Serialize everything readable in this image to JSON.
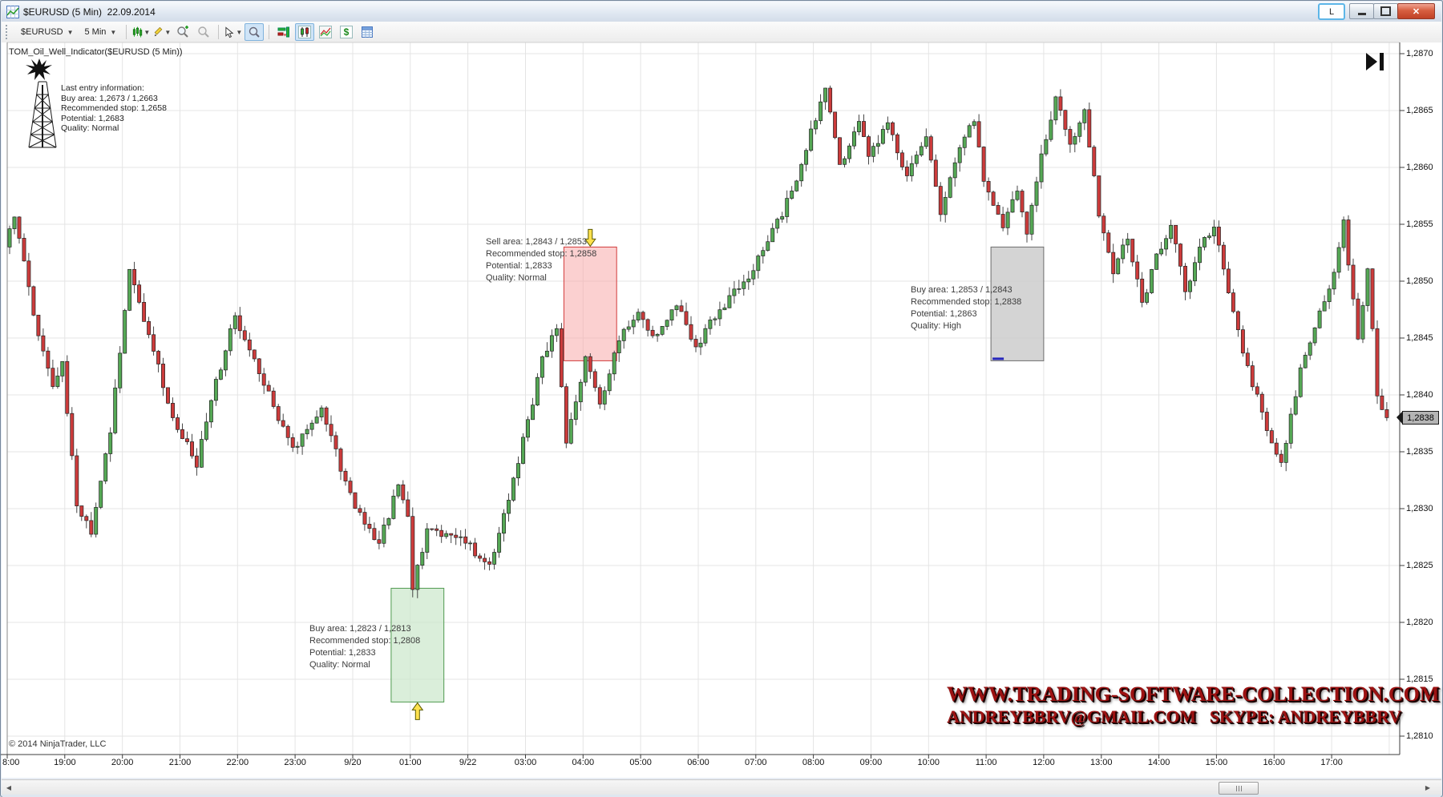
{
  "window": {
    "title": "$EURUSD (5 Min)  22.09.2014",
    "link_button": "L"
  },
  "toolbar": {
    "instrument": "$EURUSD",
    "interval": "5 Min"
  },
  "indicator": {
    "name": "TOM_Oil_Well_Indicator($EURUSD (5 Min))",
    "last_entry_lines": [
      "Last entry information:",
      "Buy area: 1,2673 / 1,2663",
      "Recommended stop: 1,2658",
      "Potential: 1,2683",
      "Quality: Normal"
    ]
  },
  "annotations": {
    "sell": {
      "lines": [
        "Sell area: 1,2843 / 1,2853",
        "Recommended stop: 1,2858",
        "Potential: 1,2833",
        "Quality: Normal"
      ]
    },
    "buy_normal": {
      "lines": [
        "Buy area: 1,2823 / 1,2813",
        "Recommended stop: 1,2808",
        "Potential: 1,2833",
        "Quality: Normal"
      ]
    },
    "buy_high": {
      "lines": [
        "Buy area: 1,2853 / 1,2843",
        "Recommended stop: 1,2838",
        "Potential: 1,2863",
        "Quality: High"
      ]
    }
  },
  "watermark": {
    "line1": "WWW.TRADING-SOFTWARE-COLLECTION.COM",
    "line2": "ANDREYBBRV@GMAIL.COM   SKYPE: ANDREYBBRV"
  },
  "copyright": "© 2014 NinjaTrader, LLC",
  "price_badge": "1,2838",
  "chart_data": {
    "type": "candlestick",
    "instrument": "$EURUSD",
    "interval_minutes": 5,
    "session_date": "22.09.2014",
    "last_price": 1.2838,
    "bars_per_hour": 12,
    "bar_count": 288,
    "x_tick_labels": [
      "8:00",
      "19:00",
      "20:00",
      "21:00",
      "22:00",
      "23:00",
      "9/20",
      "01:00",
      "9/22",
      "03:00",
      "04:00",
      "05:00",
      "06:00",
      "07:00",
      "08:00",
      "09:00",
      "10:00",
      "11:00",
      "12:00",
      "13:00",
      "14:00",
      "15:00",
      "16:00",
      "17:00"
    ],
    "y_axis": {
      "max": 1.287,
      "min": 1.281,
      "step": 0.0005,
      "labels": [
        "1,2870",
        "1,2865",
        "1,2860",
        "1,2855",
        "1,2850",
        "1,2845",
        "1,2840",
        "1,2835",
        "1,2830",
        "1,2825",
        "1,2820",
        "1,2815",
        "1,2810"
      ]
    },
    "price_path_anchors": [
      [
        0,
        1.2853
      ],
      [
        2,
        1.2856
      ],
      [
        6,
        1.2847
      ],
      [
        10,
        1.2841
      ],
      [
        12,
        1.2843
      ],
      [
        15,
        1.283
      ],
      [
        18,
        1.2828
      ],
      [
        22,
        1.2837
      ],
      [
        26,
        1.2851
      ],
      [
        30,
        1.2845
      ],
      [
        36,
        1.2837
      ],
      [
        40,
        1.2834
      ],
      [
        44,
        1.2841
      ],
      [
        48,
        1.2847
      ],
      [
        54,
        1.2841
      ],
      [
        60,
        1.2835
      ],
      [
        66,
        1.2839
      ],
      [
        72,
        1.2831
      ],
      [
        78,
        1.2827
      ],
      [
        82,
        1.2832
      ],
      [
        84,
        1.2829
      ],
      [
        85,
        1.2823
      ],
      [
        88,
        1.2828
      ],
      [
        96,
        1.2827
      ],
      [
        101,
        1.2825
      ],
      [
        105,
        1.2831
      ],
      [
        108,
        1.2836
      ],
      [
        112,
        1.2843
      ],
      [
        115,
        1.2846
      ],
      [
        117,
        1.2836
      ],
      [
        121,
        1.2843
      ],
      [
        124,
        1.2839
      ],
      [
        128,
        1.2845
      ],
      [
        132,
        1.2847
      ],
      [
        136,
        1.2845
      ],
      [
        140,
        1.2848
      ],
      [
        144,
        1.2844
      ],
      [
        148,
        1.2847
      ],
      [
        152,
        1.2849
      ],
      [
        156,
        1.2851
      ],
      [
        162,
        1.2856
      ],
      [
        166,
        1.286
      ],
      [
        168,
        1.2863
      ],
      [
        171,
        1.2867
      ],
      [
        174,
        1.286
      ],
      [
        178,
        1.2864
      ],
      [
        180,
        1.2861
      ],
      [
        184,
        1.2864
      ],
      [
        188,
        1.2859
      ],
      [
        192,
        1.2863
      ],
      [
        195,
        1.2856
      ],
      [
        199,
        1.2862
      ],
      [
        202,
        1.2864
      ],
      [
        204,
        1.2859
      ],
      [
        208,
        1.2855
      ],
      [
        211,
        1.2858
      ],
      [
        213,
        1.2854
      ],
      [
        216,
        1.2861
      ],
      [
        219,
        1.2866
      ],
      [
        222,
        1.2862
      ],
      [
        225,
        1.2865
      ],
      [
        228,
        1.2856
      ],
      [
        231,
        1.2851
      ],
      [
        234,
        1.2854
      ],
      [
        237,
        1.2848
      ],
      [
        240,
        1.2852
      ],
      [
        243,
        1.2855
      ],
      [
        246,
        1.2849
      ],
      [
        249,
        1.2853
      ],
      [
        252,
        1.2855
      ],
      [
        256,
        1.2847
      ],
      [
        260,
        1.2841
      ],
      [
        264,
        1.2836
      ],
      [
        266,
        1.2834
      ],
      [
        270,
        1.2842
      ],
      [
        273,
        1.2846
      ],
      [
        276,
        1.2849
      ],
      [
        279,
        1.2855
      ],
      [
        282,
        1.2845
      ],
      [
        284,
        1.2851
      ],
      [
        286,
        1.284
      ],
      [
        288,
        1.2838
      ]
    ],
    "spikes": [
      {
        "bar": 15,
        "low": 1.2829
      },
      {
        "bar": 84,
        "low": 1.28228
      },
      {
        "bar": 171,
        "high": 1.28672
      },
      {
        "bar": 219,
        "high": 1.28662
      }
    ],
    "zones": [
      {
        "kind": "sell",
        "quality": "Normal",
        "bar_start": 116,
        "bar_end": 126,
        "price_top": 1.2853,
        "price_bottom": 1.2843,
        "fill": "rgba(247,170,170,0.55)",
        "border": "#d23b3b",
        "arrow": "down"
      },
      {
        "kind": "buy",
        "quality": "Normal",
        "bar_start": 80,
        "bar_end": 90,
        "price_top": 1.2823,
        "price_bottom": 1.2813,
        "fill": "rgba(205,232,205,0.75)",
        "border": "#4f9a4f",
        "arrow": "up"
      },
      {
        "kind": "buy",
        "quality": "High",
        "bar_start": 205,
        "bar_end": 215,
        "price_top": 1.2853,
        "price_bottom": 1.2843,
        "fill": "rgba(205,205,205,0.85)",
        "border": "#6e6e6e",
        "arrow": "none",
        "marker": "blue-dash"
      }
    ],
    "colors": {
      "up": "#55a855",
      "down": "#cc3b3b",
      "outline": "#222222",
      "wick": "#333333",
      "grid": "#e4e4e4",
      "axis": "#3c3c3c",
      "arrow_fill": "#ffe14d",
      "arrow_stroke": "#5a5a00",
      "marker_blue": "#2626bb"
    }
  }
}
